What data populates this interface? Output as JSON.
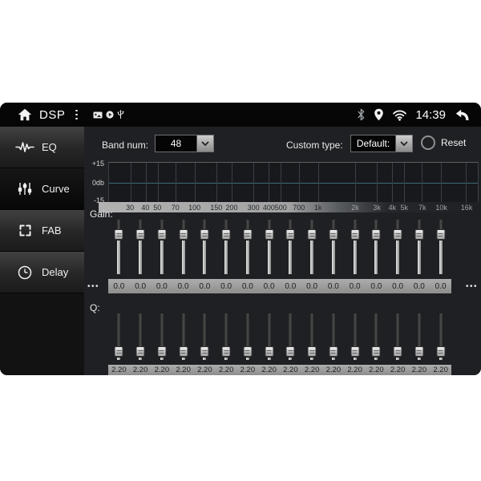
{
  "statusbar": {
    "app_label": "DSP",
    "time": "14:39"
  },
  "sidebar": {
    "items": [
      {
        "label": "EQ",
        "icon": "waveform-icon",
        "selected": false
      },
      {
        "label": "Curve",
        "icon": "sliders-icon",
        "selected": true
      },
      {
        "label": "FAB",
        "icon": "fader-arrows-icon",
        "selected": false
      },
      {
        "label": "Delay",
        "icon": "clock-icon",
        "selected": false
      }
    ]
  },
  "controls": {
    "band_num_label": "Band num:",
    "band_num_value": "48",
    "custom_type_label": "Custom type:",
    "custom_type_value": "Default:",
    "reset_label": "Reset"
  },
  "eq_graph": {
    "y_axis_labels": [
      "+15",
      "0db",
      "-15"
    ],
    "freq_labels": [
      "30",
      "40",
      "50",
      "70",
      "100",
      "150",
      "200",
      "300",
      "400",
      "500",
      "700",
      "1k",
      "2k",
      "3k",
      "4k",
      "5k",
      "7k",
      "10k",
      "16k"
    ],
    "y_range": [
      -15,
      15
    ]
  },
  "gain": {
    "label": "Gain:",
    "values": [
      "0.0",
      "0.0",
      "0.0",
      "0.0",
      "0.0",
      "0.0",
      "0.0",
      "0.0",
      "0.0",
      "0.0",
      "0.0",
      "0.0",
      "0.0",
      "0.0",
      "0.0",
      "0.0"
    ],
    "more_indicator": "•••"
  },
  "q": {
    "label": "Q:",
    "values": [
      "2.20",
      "2.20",
      "2.20",
      "2.20",
      "2.20",
      "2.20",
      "2.20",
      "2.20",
      "2.20",
      "2.20",
      "2.20",
      "2.20",
      "2.20",
      "2.20",
      "2.20",
      "2.20"
    ]
  },
  "colors": {
    "zero_line": "#3e6b7a",
    "value_bar": "#9c9c9c",
    "statusbar_bg": "#060606",
    "bluetooth_icon": "#9aa0a4"
  }
}
